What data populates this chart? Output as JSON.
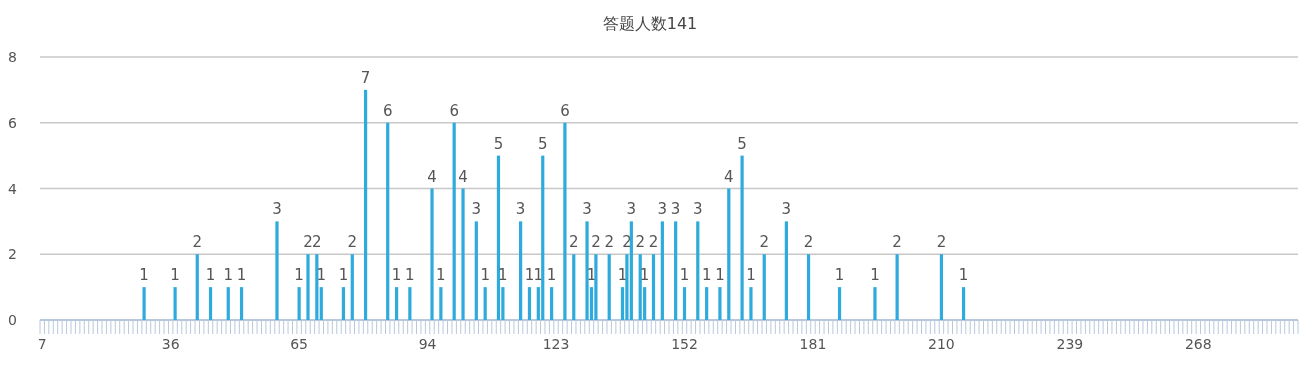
{
  "chart_data": {
    "type": "bar",
    "title": "答题人数141",
    "x": [
      30,
      37,
      42,
      45,
      49,
      52,
      60,
      65,
      67,
      69,
      70,
      75,
      77,
      80,
      85,
      87,
      90,
      95,
      97,
      100,
      102,
      105,
      107,
      110,
      111,
      115,
      117,
      119,
      120,
      122,
      125,
      127,
      130,
      131,
      132,
      135,
      138,
      139,
      140,
      142,
      143,
      145,
      147,
      150,
      152,
      155,
      157,
      160,
      162,
      165,
      167,
      170,
      175,
      180,
      187,
      195,
      200,
      210,
      215
    ],
    "values": [
      1,
      1,
      2,
      1,
      1,
      1,
      3,
      1,
      2,
      2,
      1,
      1,
      2,
      7,
      6,
      1,
      1,
      4,
      1,
      6,
      4,
      3,
      1,
      5,
      1,
      3,
      1,
      1,
      5,
      1,
      6,
      2,
      3,
      1,
      2,
      2,
      1,
      2,
      3,
      2,
      1,
      2,
      3,
      3,
      1,
      3,
      1,
      1,
      4,
      5,
      1,
      2,
      3,
      2,
      1,
      1,
      2,
      2,
      1
    ],
    "color": "#2eaadc",
    "xlim": [
      6.5,
      290.5
    ],
    "xticks": [
      7,
      36,
      65,
      94,
      123,
      152,
      181,
      210,
      239,
      268
    ],
    "ylim": [
      0,
      8
    ],
    "yticks": [
      0,
      2,
      4,
      6,
      8
    ],
    "grid": "y",
    "data_labels": true
  }
}
